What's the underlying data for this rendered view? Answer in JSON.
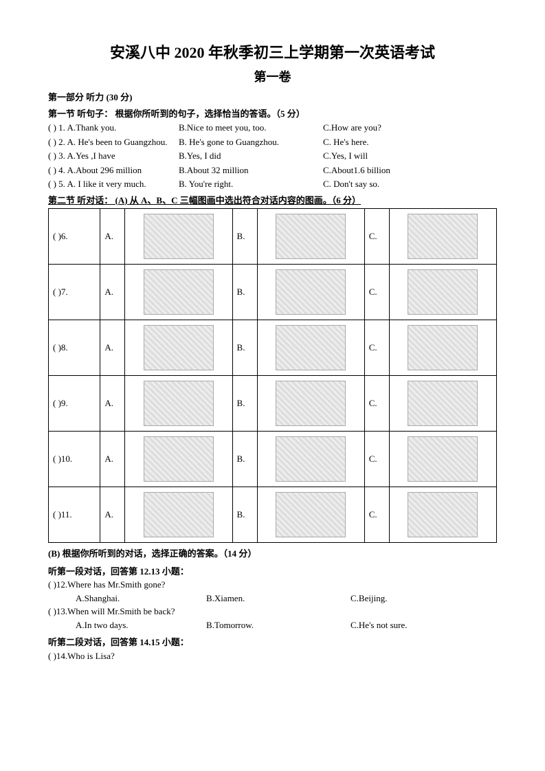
{
  "title": "安溪八中 2020 年秋季初三上学期第一次英语考试",
  "subtitle": "第一卷",
  "part1_head": "第一部分  听力 (30 分)",
  "sec1_head": "第一节  听句子：  根据你所听到的句子，选择恰当的答语。（5 分）",
  "sec1": [
    {
      "n": "(     ) 1. A.Thank you.",
      "b": "B.Nice to meet you, too.",
      "c": "C.How are you?"
    },
    {
      "n": "(     ) 2. A. He's been to Guangzhou.",
      "b": "B. He's gone to Guangzhou.",
      "c": "C. He's here."
    },
    {
      "n": "(     ) 3. A.Yes ,I have",
      "b": "B.Yes, I did",
      "c": "C.Yes, I will"
    },
    {
      "n": "(     ) 4. A.About 296 million",
      "b": "B.About 32 million",
      "c": "C.About1.6 billion"
    },
    {
      "n": "(     ) 5. A. I like it very much.",
      "b": "B. You're right.",
      "c": "C. Don't say so."
    }
  ],
  "sec2_head": "第二节 听对话：  (A)  从 A、B、C 三幅图画中选出符合对话内容的图画。（6 分）",
  "pic_rows": [
    {
      "q": "(    )6.",
      "a": "A.",
      "b": "B.",
      "c": "C."
    },
    {
      "q": "(    )7.",
      "a": "A.",
      "b": "B.",
      "c": "C."
    },
    {
      "q": "(    )8.",
      "a": "A.",
      "b": "B.",
      "c": "C."
    },
    {
      "q": "(    )9.",
      "a": "A.",
      "b": "B.",
      "c": "C."
    },
    {
      "q": "(    )10.",
      "a": "A.",
      "b": "B.",
      "c": "C."
    },
    {
      "q": "(    )11.",
      "a": "A.",
      "b": "B.",
      "c": "C."
    }
  ],
  "B_head": " (B)  根据你所听到的对话，选择正确的答案。（14 分）",
  "dialog1_head": "听第一段对话，回答第 12.13 小题：",
  "q12": "(      )12.Where has Mr.Smith gone?",
  "q12opts": {
    "a": "A.Shanghai.",
    "b": "B.Xiamen.",
    "c": "C.Beijing."
  },
  "q13": "(      )13.When will Mr.Smith be back?",
  "q13opts": {
    "a": "A.In two days.",
    "b": "B.Tomorrow.",
    "c": "C.He's not sure."
  },
  "dialog2_head": "听第二段对话，回答第 14.15 小题：",
  "q14": "(      )14.Who is Lisa?"
}
